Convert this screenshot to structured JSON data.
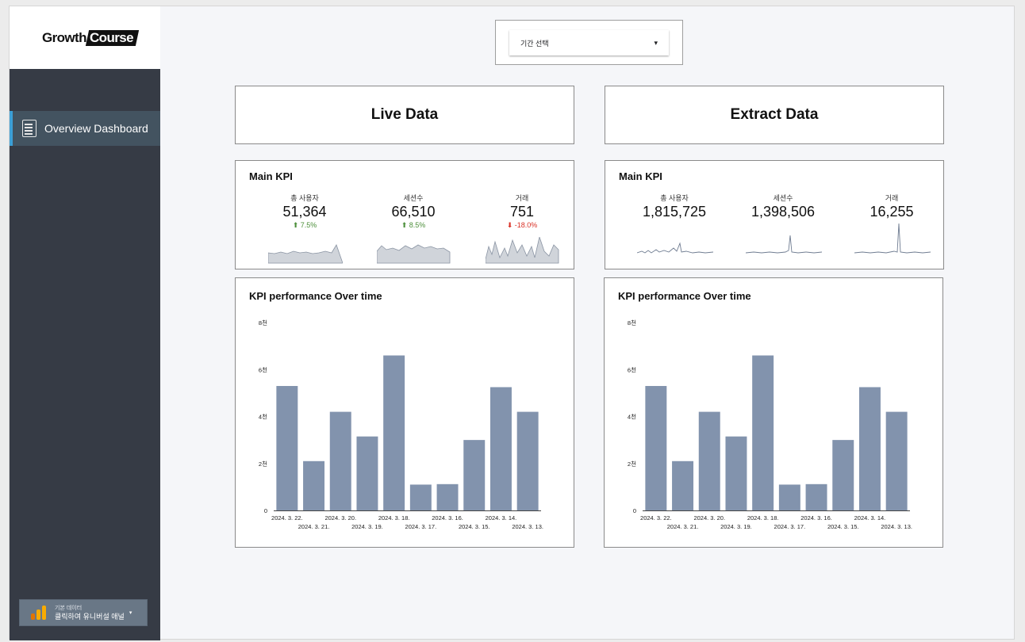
{
  "logo": {
    "part1": "Growth",
    "part2": "Course"
  },
  "sidebar": {
    "items": [
      {
        "label": "Overview Dashboard",
        "icon": "list-document-icon"
      }
    ]
  },
  "data_source": {
    "line1": "기본 데이터",
    "line2": "클릭하여 유니버설 애널",
    "icon": "analytics-bars-icon"
  },
  "date_filter": {
    "label": "기간 선택",
    "caret": "▾"
  },
  "columns": [
    {
      "header": "Live Data",
      "kpi_title": "Main KPI",
      "kpis": [
        {
          "label": "총 사용자",
          "value": "51,364",
          "delta": "7.5%",
          "direction": "up"
        },
        {
          "label": "세션수",
          "value": "66,510",
          "delta": "8.5%",
          "direction": "up"
        },
        {
          "label": "거래",
          "value": "751",
          "delta": "-18.0%",
          "direction": "down"
        }
      ],
      "chart_title": "KPI performance Over time"
    },
    {
      "header": "Extract Data",
      "kpi_title": "Main KPI",
      "kpis": [
        {
          "label": "총 사용자",
          "value": "1,815,725",
          "delta": "",
          "direction": ""
        },
        {
          "label": "세션수",
          "value": "1,398,506",
          "delta": "",
          "direction": ""
        },
        {
          "label": "거래",
          "value": "16,255",
          "delta": "",
          "direction": ""
        }
      ],
      "chart_title": "KPI performance Over time"
    }
  ],
  "chart_data": [
    {
      "type": "bar",
      "title": "KPI performance Over time",
      "categories": [
        "2024. 3. 22.",
        "2024. 3. 21.",
        "2024. 3. 20.",
        "2024. 3. 19.",
        "2024. 3. 18.",
        "2024. 3. 17.",
        "2024. 3. 16.",
        "2024. 3. 15.",
        "2024. 3. 14.",
        "2024. 3. 13."
      ],
      "values": [
        5300,
        2100,
        4200,
        3150,
        6600,
        1100,
        1120,
        3000,
        5250,
        4200
      ],
      "ylim": [
        0,
        8000
      ],
      "yticks": [
        0,
        2000,
        4000,
        6000,
        8000
      ],
      "ytick_labels": [
        "0",
        "2천",
        "4천",
        "6천",
        "8천"
      ],
      "color": "#8293ad"
    },
    {
      "type": "bar",
      "title": "KPI performance Over time",
      "categories": [
        "2024. 3. 22.",
        "2024. 3. 21.",
        "2024. 3. 20.",
        "2024. 3. 19.",
        "2024. 3. 18.",
        "2024. 3. 17.",
        "2024. 3. 16.",
        "2024. 3. 15.",
        "2024. 3. 14.",
        "2024. 3. 13."
      ],
      "values": [
        5300,
        2100,
        4200,
        3150,
        6600,
        1100,
        1120,
        3000,
        5250,
        4200
      ],
      "ylim": [
        0,
        8000
      ],
      "yticks": [
        0,
        2000,
        4000,
        6000,
        8000
      ],
      "ytick_labels": [
        "0",
        "2천",
        "4천",
        "6천",
        "8천"
      ],
      "color": "#8293ad"
    }
  ],
  "colors": {
    "sidebar": "#363b45",
    "nav_active": "#435360",
    "nav_accent": "#3c9fd6",
    "bar": "#8293ad",
    "up": "#4c8f3a",
    "down": "#d93025"
  }
}
